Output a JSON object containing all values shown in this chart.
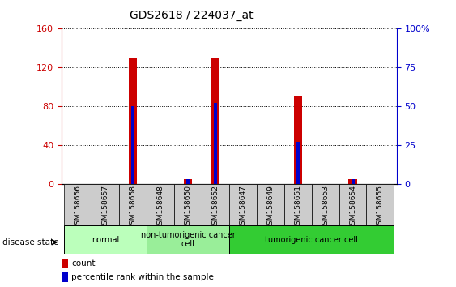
{
  "title": "GDS2618 / 224037_at",
  "samples": [
    "GSM158656",
    "GSM158657",
    "GSM158658",
    "GSM158648",
    "GSM158650",
    "GSM158652",
    "GSM158647",
    "GSM158649",
    "GSM158651",
    "GSM158653",
    "GSM158654",
    "GSM158655"
  ],
  "count_values": [
    0,
    0,
    130,
    0,
    5,
    129,
    0,
    0,
    90,
    0,
    5,
    0
  ],
  "percentile_values": [
    0,
    0,
    50,
    0,
    3,
    52,
    0,
    0,
    27,
    0,
    3,
    0
  ],
  "ylim_left": [
    0,
    160
  ],
  "ylim_right": [
    0,
    100
  ],
  "yticks_left": [
    0,
    40,
    80,
    120,
    160
  ],
  "yticks_right": [
    0,
    25,
    50,
    75,
    100
  ],
  "ytick_labels_right": [
    "0",
    "25",
    "50",
    "75",
    "100%"
  ],
  "count_color": "#CC0000",
  "percentile_color": "#0000CC",
  "disease_groups": [
    {
      "label": "normal",
      "indices": [
        0,
        1,
        2
      ],
      "color": "#BBFFBB"
    },
    {
      "label": "non-tumorigenic cancer\ncell",
      "indices": [
        3,
        4,
        5
      ],
      "color": "#99EE99"
    },
    {
      "label": "tumorigenic cancer cell",
      "indices": [
        6,
        7,
        8,
        9,
        10,
        11
      ],
      "color": "#33CC33"
    }
  ],
  "disease_state_label": "disease state",
  "legend_count_label": "count",
  "legend_percentile_label": "percentile rank within the sample",
  "tick_label_color_left": "#CC0000",
  "tick_label_color_right": "#0000CC",
  "sample_box_color": "#CCCCCC"
}
